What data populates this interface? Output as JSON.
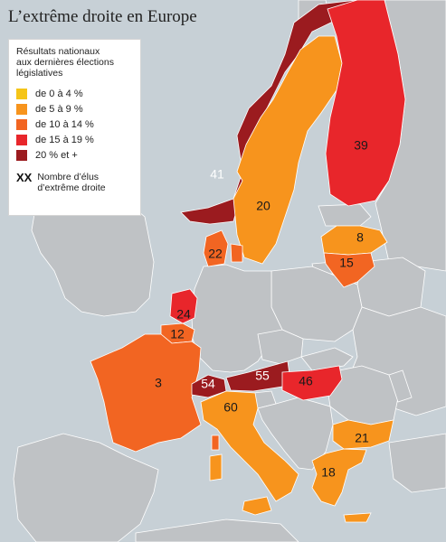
{
  "title": "L’extrême droite en Europe",
  "legend": {
    "title": "Résultats nationaux\naux dernières élections\nlégislatives",
    "classes": [
      {
        "label": "de 0 à 4 %",
        "color": "#f5c518"
      },
      {
        "label": "de 5 à 9 %",
        "color": "#f7941d"
      },
      {
        "label": "de 10 à 14 %",
        "color": "#f26522"
      },
      {
        "label": "de 15 à 19 %",
        "color": "#e8262b"
      },
      {
        "label": "20 % et +",
        "color": "#9b1b1f"
      }
    ],
    "symbol": "XX",
    "symbol_label": "Nombre d’élus\nd’extrême droite"
  },
  "colors": {
    "sea": "#c7d0d6",
    "land": "#bfc2c5",
    "border": "#ffffff"
  },
  "countries": [
    {
      "key": "norway",
      "value": "41",
      "class": "20 % et +"
    },
    {
      "key": "sweden",
      "value": "20",
      "class": "de 5 à 9 %"
    },
    {
      "key": "finland",
      "value": "39",
      "class": "de 15 à 19 %"
    },
    {
      "key": "latvia",
      "value": "8",
      "class": "de 5 à 9 %"
    },
    {
      "key": "lithuania",
      "value": "15",
      "class": "de 10 à 14 %"
    },
    {
      "key": "denmark",
      "value": "22",
      "class": "de 10 à 14 %"
    },
    {
      "key": "netherlands",
      "value": "24",
      "class": "de 15 à 19 %"
    },
    {
      "key": "belgium",
      "value": "12",
      "class": "de 10 à 14 %"
    },
    {
      "key": "france",
      "value": "3",
      "class": "de 10 à 14 %"
    },
    {
      "key": "switzerland",
      "value": "54",
      "class": "20 % et +"
    },
    {
      "key": "austria",
      "value": "55",
      "class": "20 % et +"
    },
    {
      "key": "hungary",
      "value": "46",
      "class": "de 15 à 19 %"
    },
    {
      "key": "italy",
      "value": "60",
      "class": "de 5 à 9 %"
    },
    {
      "key": "bulgaria",
      "value": "21",
      "class": "de 5 à 9 %"
    },
    {
      "key": "greece",
      "value": "18",
      "class": "de 5 à 9 %"
    }
  ]
}
